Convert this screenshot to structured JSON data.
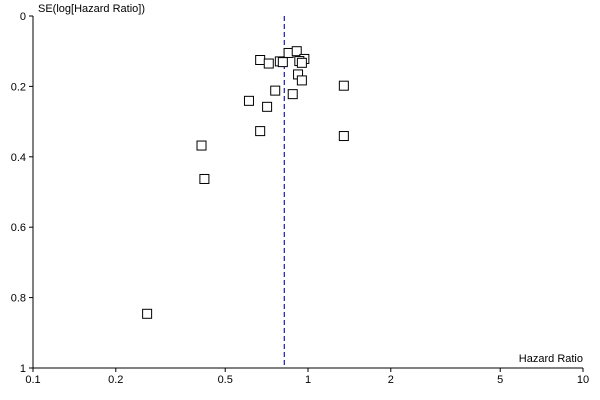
{
  "chart_data": {
    "type": "scatter",
    "title": "",
    "xlabel": "Hazard Ratio",
    "ylabel": "SE(log[Hazard Ratio])",
    "x_scale": "log",
    "xlim": [
      0.1,
      10
    ],
    "ylim": [
      0,
      1
    ],
    "y_inverted": true,
    "x_ticks": [
      0.1,
      0.2,
      0.5,
      1,
      2,
      5,
      10
    ],
    "x_tick_labels": [
      "0.1",
      "0.2",
      "0.5",
      "1",
      "2",
      "5",
      "10"
    ],
    "y_ticks": [
      0,
      0.2,
      0.4,
      0.6,
      0.8,
      1
    ],
    "y_tick_labels": [
      "0",
      "0.2",
      "0.4",
      "0.6",
      "0.8",
      "1"
    ],
    "grid": false,
    "legend": "none",
    "reference_line": {
      "x": 0.82,
      "style": "dashed",
      "color": "#1a1aa6"
    },
    "points": [
      {
        "x": 0.85,
        "y": 0.105
      },
      {
        "x": 0.91,
        "y": 0.1
      },
      {
        "x": 0.97,
        "y": 0.122
      },
      {
        "x": 0.67,
        "y": 0.125
      },
      {
        "x": 0.93,
        "y": 0.128
      },
      {
        "x": 0.79,
        "y": 0.129
      },
      {
        "x": 0.81,
        "y": 0.131
      },
      {
        "x": 0.95,
        "y": 0.133
      },
      {
        "x": 0.72,
        "y": 0.135
      },
      {
        "x": 0.92,
        "y": 0.166
      },
      {
        "x": 0.95,
        "y": 0.183
      },
      {
        "x": 1.35,
        "y": 0.198
      },
      {
        "x": 0.76,
        "y": 0.212
      },
      {
        "x": 0.88,
        "y": 0.222
      },
      {
        "x": 0.61,
        "y": 0.241
      },
      {
        "x": 0.71,
        "y": 0.258
      },
      {
        "x": 0.67,
        "y": 0.327
      },
      {
        "x": 1.35,
        "y": 0.341
      },
      {
        "x": 0.41,
        "y": 0.368
      },
      {
        "x": 0.42,
        "y": 0.463
      },
      {
        "x": 0.26,
        "y": 0.846
      }
    ]
  }
}
